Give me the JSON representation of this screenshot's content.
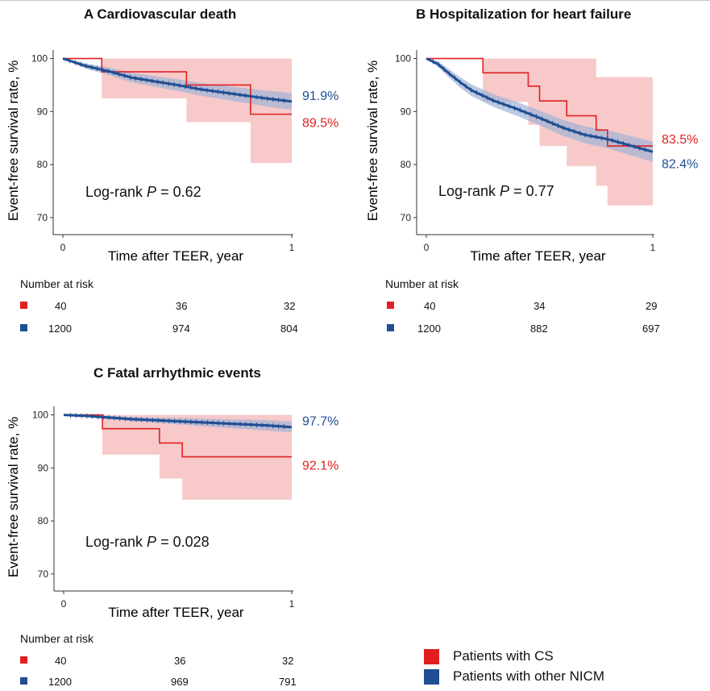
{
  "colors": {
    "cs": "#e02020",
    "cs_band": "#f6c0c0",
    "nicm": "#1f4e93",
    "nicm_band": "#9fb4d6"
  },
  "axis": {
    "ylabel": "Event-free survival rate, %",
    "xlabel": "Time after TEER, year"
  },
  "risk_title": "Number at risk",
  "legend": [
    {
      "name": "Patients with CS",
      "color": "#e02020"
    },
    {
      "name": "Patients with other NICM",
      "color": "#1f4e93"
    }
  ],
  "chart_data": [
    {
      "id": "A",
      "type": "line",
      "title": "A  Cardiovascular death",
      "xlabel": "Time after TEER, year",
      "ylabel": "Event-free survival rate, %",
      "xlim": [
        0,
        1
      ],
      "ylim": [
        68,
        101
      ],
      "xticks": [
        "0",
        "1"
      ],
      "yticks": [
        "70",
        "80",
        "90",
        "100"
      ],
      "annotation_prefix": "Log-rank ",
      "p_symbol": "P",
      "p_value": " = 0.62",
      "series": [
        {
          "name": "Patients with CS",
          "color": "#e02020",
          "x": [
            0,
            0.17,
            0.54,
            0.82,
            1.0
          ],
          "y": [
            100,
            97.5,
            95.0,
            89.5,
            89.5
          ],
          "ci_lower": [
            100,
            92.5,
            88.0,
            80.3,
            80.3
          ],
          "ci_upper": [
            100,
            100,
            100,
            100,
            100
          ],
          "end_label": "89.5%"
        },
        {
          "name": "Patients with other NICM",
          "color": "#1f4e93",
          "x": [
            0,
            0.05,
            0.1,
            0.2,
            0.3,
            0.4,
            0.5,
            0.6,
            0.7,
            0.8,
            0.9,
            1.0
          ],
          "y": [
            100,
            99.3,
            98.6,
            97.6,
            96.4,
            95.7,
            95.0,
            94.2,
            93.6,
            93.0,
            92.4,
            91.9
          ],
          "ci_lower": [
            100,
            99.0,
            98.1,
            96.9,
            95.5,
            94.7,
            93.9,
            93.0,
            92.3,
            91.6,
            90.9,
            90.3
          ],
          "ci_upper": [
            100,
            99.6,
            99.1,
            98.3,
            97.3,
            96.7,
            96.1,
            95.4,
            94.9,
            94.4,
            93.9,
            93.5
          ],
          "end_label": "91.9%"
        }
      ],
      "risk": [
        [
          "40",
          "36",
          "32"
        ],
        [
          "1200",
          "974",
          "804"
        ]
      ]
    },
    {
      "id": "B",
      "type": "line",
      "title": "B  Hospitalization for heart failure",
      "xlabel": "Time after TEER, year",
      "ylabel": "Event-free survival rate, %",
      "xlim": [
        0,
        1
      ],
      "ylim": [
        68,
        101
      ],
      "xticks": [
        "0",
        "1"
      ],
      "yticks": [
        "70",
        "80",
        "90",
        "100"
      ],
      "annotation_prefix": "Log-rank ",
      "p_symbol": "P",
      "p_value": " = 0.77",
      "series": [
        {
          "name": "Patients with CS",
          "color": "#e02020",
          "x": [
            0,
            0.25,
            0.45,
            0.5,
            0.62,
            0.75,
            0.8,
            1.0
          ],
          "y": [
            100,
            97.3,
            94.8,
            92.0,
            89.2,
            86.5,
            83.5,
            83.5
          ],
          "ci_lower": [
            100,
            91.8,
            87.5,
            83.5,
            79.7,
            76.0,
            72.3,
            72.3
          ],
          "ci_upper": [
            100,
            100,
            100,
            100,
            100,
            96.5,
            96.5,
            96.5
          ],
          "end_label": "83.5%"
        },
        {
          "name": "Patients with other NICM",
          "color": "#1f4e93",
          "x": [
            0,
            0.05,
            0.1,
            0.15,
            0.2,
            0.3,
            0.4,
            0.5,
            0.6,
            0.7,
            0.8,
            0.9,
            1.0
          ],
          "y": [
            100,
            99.0,
            97.2,
            95.5,
            94.0,
            92.0,
            90.5,
            88.8,
            87.0,
            85.6,
            84.8,
            83.6,
            82.4
          ],
          "ci_lower": [
            100,
            98.5,
            96.4,
            94.5,
            92.9,
            90.8,
            89.2,
            87.4,
            85.5,
            84.0,
            83.1,
            81.8,
            80.5
          ],
          "ci_upper": [
            100,
            99.5,
            98.0,
            96.5,
            95.1,
            93.2,
            91.8,
            90.2,
            88.5,
            87.2,
            86.5,
            85.4,
            84.3
          ],
          "end_label": "82.4%"
        }
      ],
      "risk": [
        [
          "40",
          "34",
          "29"
        ],
        [
          "1200",
          "882",
          "697"
        ]
      ]
    },
    {
      "id": "C",
      "type": "line",
      "title": "C  Fatal arrhythmic events",
      "xlabel": "Time after TEER, year",
      "ylabel": "Event-free survival rate, %",
      "xlim": [
        0,
        1
      ],
      "ylim": [
        68,
        101
      ],
      "xticks": [
        "0",
        "1"
      ],
      "yticks": [
        "70",
        "80",
        "90",
        "100"
      ],
      "annotation_prefix": "Log-rank ",
      "p_symbol": "P",
      "p_value": " = 0.028",
      "series": [
        {
          "name": "Patients with CS",
          "color": "#e02020",
          "x": [
            0,
            0.17,
            0.42,
            0.52,
            1.0
          ],
          "y": [
            100,
            97.4,
            94.7,
            92.1,
            92.1
          ],
          "ci_lower": [
            100,
            92.5,
            88.0,
            84.0,
            84.0
          ],
          "ci_upper": [
            100,
            100,
            100,
            100,
            100
          ],
          "end_label": "92.1%"
        },
        {
          "name": "Patients with other NICM",
          "color": "#1f4e93",
          "x": [
            0,
            0.1,
            0.2,
            0.3,
            0.4,
            0.5,
            0.6,
            0.7,
            0.8,
            0.9,
            1.0
          ],
          "y": [
            100,
            99.8,
            99.5,
            99.2,
            99.0,
            98.8,
            98.6,
            98.4,
            98.2,
            98.0,
            97.7
          ],
          "ci_lower": [
            100,
            99.6,
            99.2,
            98.8,
            98.5,
            98.2,
            97.9,
            97.6,
            97.3,
            97.0,
            96.7
          ],
          "ci_upper": [
            100,
            100,
            99.8,
            99.6,
            99.5,
            99.4,
            99.3,
            99.2,
            99.1,
            99.0,
            98.7
          ],
          "end_label": "97.7%"
        }
      ],
      "risk": [
        [
          "40",
          "36",
          "32"
        ],
        [
          "1200",
          "969",
          "791"
        ]
      ]
    }
  ]
}
